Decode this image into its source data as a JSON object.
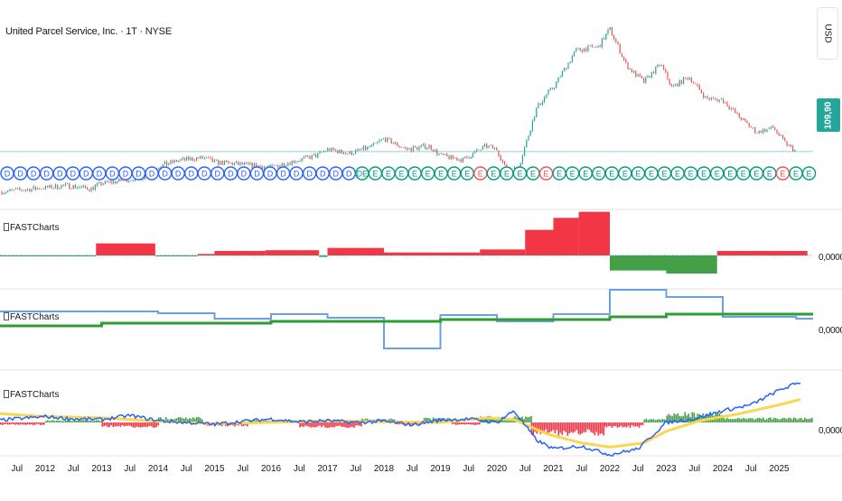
{
  "header": {
    "symbol_title": "United Parcel Service, Inc. · 1T · NYSE",
    "currency": "USD",
    "last_price": "109,90"
  },
  "panes": [
    {
      "indicator_name": "FASTCharts",
      "zero_value": "0,0000"
    },
    {
      "indicator_name": "FASTCharts",
      "zero_value": "0,0000"
    },
    {
      "indicator_name": "FASTCharts",
      "zero_value": "0,0000"
    }
  ],
  "colors": {
    "up": "#26a69a",
    "down": "#ef5350",
    "red_fill": "#f23645",
    "green_fill": "#43a047",
    "blue_line": "#2962ff",
    "light_blue_line": "#6ca0e6",
    "dark_green_line": "#2e9d34",
    "yellow_line": "#f9d74e",
    "event_blue": "#2962ff",
    "event_green": "#089981"
  },
  "events": {
    "markers": [
      "D",
      "D",
      "D",
      "D",
      "D",
      "D",
      "D",
      "D",
      "D",
      "D",
      "D",
      "D",
      "D",
      "D",
      "D",
      "D",
      "D",
      "D",
      "D",
      "D",
      "D",
      "D",
      "D",
      "D",
      "D",
      "D",
      "D",
      "DE",
      "E",
      "E",
      "E",
      "E",
      "E",
      "E",
      "E",
      "E",
      "E",
      "E",
      "E",
      "E",
      "E",
      "E",
      "E",
      "E",
      "E",
      "E",
      "E",
      "E",
      "E",
      "E",
      "E",
      "E",
      "E",
      "E",
      "E",
      "E",
      "E",
      "E",
      "E",
      "E",
      "E",
      "E"
    ],
    "red_indices": [
      36,
      41,
      59
    ]
  },
  "chart_data": {
    "type": "line",
    "title": "United Parcel Service, Inc. · 1T · NYSE",
    "xlabel": "",
    "ylabel": "USD",
    "x_ticks": [
      "Jul",
      "2012",
      "Jul",
      "2013",
      "Jul",
      "2014",
      "Jul",
      "2015",
      "Jul",
      "2016",
      "Jul",
      "2017",
      "Jul",
      "2018",
      "Jul",
      "2019",
      "Jul",
      "2020",
      "Jul",
      "2021",
      "Jul",
      "2022",
      "Jul",
      "2023",
      "Jul",
      "2024",
      "Jul",
      "2025"
    ],
    "x_range": [
      2011.2,
      2025.6
    ],
    "price": {
      "last": 109.9,
      "ylim": [
        70,
        235
      ],
      "series": [
        [
          2011.2,
          72
        ],
        [
          2011.6,
          74
        ],
        [
          2012.0,
          76
        ],
        [
          2012.4,
          78
        ],
        [
          2012.8,
          75
        ],
        [
          2013.0,
          80
        ],
        [
          2013.4,
          83
        ],
        [
          2013.8,
          87
        ],
        [
          2014.0,
          96
        ],
        [
          2014.4,
          102
        ],
        [
          2014.8,
          104
        ],
        [
          2015.0,
          100
        ],
        [
          2015.4,
          98
        ],
        [
          2015.8,
          96
        ],
        [
          2016.0,
          95
        ],
        [
          2016.4,
          101
        ],
        [
          2016.8,
          106
        ],
        [
          2017.0,
          112
        ],
        [
          2017.4,
          108
        ],
        [
          2017.8,
          115
        ],
        [
          2018.0,
          122
        ],
        [
          2018.4,
          112
        ],
        [
          2018.8,
          115
        ],
        [
          2019.0,
          106
        ],
        [
          2019.4,
          102
        ],
        [
          2019.8,
          115
        ],
        [
          2020.0,
          112
        ],
        [
          2020.2,
          88
        ],
        [
          2020.4,
          98
        ],
        [
          2020.7,
          150
        ],
        [
          2020.9,
          165
        ],
        [
          2021.0,
          170
        ],
        [
          2021.4,
          205
        ],
        [
          2021.8,
          208
        ],
        [
          2022.0,
          225
        ],
        [
          2022.3,
          190
        ],
        [
          2022.6,
          175
        ],
        [
          2022.9,
          192
        ],
        [
          2023.1,
          170
        ],
        [
          2023.4,
          180
        ],
        [
          2023.7,
          160
        ],
        [
          2024.0,
          158
        ],
        [
          2024.3,
          142
        ],
        [
          2024.6,
          128
        ],
        [
          2024.9,
          132
        ],
        [
          2025.1,
          118
        ],
        [
          2025.3,
          109.9
        ]
      ]
    },
    "pane1_histogram": {
      "segments": [
        {
          "from": 2011.2,
          "to": 2012.9,
          "value": -0.5
        },
        {
          "from": 2012.9,
          "to": 2013.95,
          "value": 8
        },
        {
          "from": 2013.95,
          "to": 2014.7,
          "value": -0.4
        },
        {
          "from": 2014.7,
          "to": 2015.0,
          "value": 1
        },
        {
          "from": 2015.0,
          "to": 2015.9,
          "value": 3
        },
        {
          "from": 2015.9,
          "to": 2016.85,
          "value": 3.5
        },
        {
          "from": 2016.85,
          "to": 2017.0,
          "value": -1
        },
        {
          "from": 2017.0,
          "to": 2018.0,
          "value": 5
        },
        {
          "from": 2018.0,
          "to": 2019.7,
          "value": 2
        },
        {
          "from": 2019.7,
          "to": 2020.5,
          "value": 4
        },
        {
          "from": 2020.5,
          "to": 2021.0,
          "value": 17
        },
        {
          "from": 2021.0,
          "to": 2021.45,
          "value": 25
        },
        {
          "from": 2021.45,
          "to": 2022.0,
          "value": 29
        },
        {
          "from": 2022.0,
          "to": 2023.0,
          "value": -10
        },
        {
          "from": 2023.0,
          "to": 2023.9,
          "value": -12
        },
        {
          "from": 2023.9,
          "to": 2025.5,
          "value": 3
        }
      ],
      "ylim": [
        -15,
        30
      ]
    },
    "pane2_steps": {
      "light_blue": [
        [
          2011.2,
          2012.0,
          20
        ],
        [
          2012.0,
          2014.0,
          20
        ],
        [
          2014.0,
          2015.0,
          18
        ],
        [
          2015.0,
          2016.0,
          12
        ],
        [
          2016.0,
          2017.0,
          17
        ],
        [
          2017.0,
          2018.0,
          13
        ],
        [
          2018.0,
          2019.0,
          -21
        ],
        [
          2019.0,
          2020.0,
          16
        ],
        [
          2020.0,
          2021.0,
          9
        ],
        [
          2021.0,
          2022.0,
          17
        ],
        [
          2022.0,
          2023.0,
          44
        ],
        [
          2023.0,
          2024.0,
          36
        ],
        [
          2024.0,
          2025.3,
          14
        ],
        [
          2025.3,
          2025.6,
          12
        ]
      ],
      "dark_green": [
        [
          2011.2,
          2013.0,
          4
        ],
        [
          2013.0,
          2016.0,
          7
        ],
        [
          2016.0,
          2019.0,
          9
        ],
        [
          2019.0,
          2022.0,
          11
        ],
        [
          2022.0,
          2023.0,
          14
        ],
        [
          2023.0,
          2025.6,
          17
        ]
      ],
      "ylim": [
        -25,
        50
      ]
    },
    "pane3_lines": {
      "blue": [
        [
          2011.2,
          0.4
        ],
        [
          2012.0,
          1.0
        ],
        [
          2012.5,
          0.6
        ],
        [
          2013.0,
          0.5
        ],
        [
          2013.5,
          1.2
        ],
        [
          2014.0,
          0.3
        ],
        [
          2014.5,
          0.0
        ],
        [
          2015.0,
          -0.3
        ],
        [
          2015.5,
          0.2
        ],
        [
          2016.0,
          0.6
        ],
        [
          2016.5,
          0.1
        ],
        [
          2017.0,
          0.3
        ],
        [
          2017.5,
          0.0
        ],
        [
          2018.0,
          0.2
        ],
        [
          2018.5,
          -0.4
        ],
        [
          2019.0,
          0.4
        ],
        [
          2019.5,
          0.6
        ],
        [
          2020.0,
          0.0
        ],
        [
          2020.3,
          2.0
        ],
        [
          2020.7,
          -3.0
        ],
        [
          2021.0,
          -4.5
        ],
        [
          2021.5,
          -4.0
        ],
        [
          2022.0,
          -5.5
        ],
        [
          2022.5,
          -4.5
        ],
        [
          2023.0,
          0.0
        ],
        [
          2023.5,
          0.6
        ],
        [
          2024.0,
          2.0
        ],
        [
          2024.5,
          3.0
        ],
        [
          2025.0,
          5.5
        ],
        [
          2025.4,
          7.0
        ]
      ],
      "yellow": [
        [
          2011.2,
          1.5
        ],
        [
          2012.0,
          1.0
        ],
        [
          2013.0,
          0.8
        ],
        [
          2014.0,
          0.2
        ],
        [
          2015.0,
          -0.2
        ],
        [
          2016.0,
          0.0
        ],
        [
          2017.0,
          0.3
        ],
        [
          2018.0,
          0.1
        ],
        [
          2019.0,
          0.0
        ],
        [
          2019.8,
          0.8
        ],
        [
          2020.3,
          0.5
        ],
        [
          2020.9,
          -2.0
        ],
        [
          2021.5,
          -3.5
        ],
        [
          2022.0,
          -4.2
        ],
        [
          2022.6,
          -3.5
        ],
        [
          2023.0,
          -1.5
        ],
        [
          2023.6,
          0.3
        ],
        [
          2024.3,
          1.5
        ],
        [
          2025.0,
          3.0
        ],
        [
          2025.4,
          4.0
        ]
      ],
      "histogram": [
        {
          "from": 2011.2,
          "to": 2012.0,
          "value": -1
        },
        {
          "from": 2012.0,
          "to": 2013.0,
          "value": 1
        },
        {
          "from": 2013.0,
          "to": 2014.0,
          "value": -2
        },
        {
          "from": 2014.0,
          "to": 2014.8,
          "value": 2
        },
        {
          "from": 2014.8,
          "to": 2015.6,
          "value": -1.5
        },
        {
          "from": 2015.6,
          "to": 2016.5,
          "value": 1
        },
        {
          "from": 2016.5,
          "to": 2017.6,
          "value": -2
        },
        {
          "from": 2017.6,
          "to": 2018.2,
          "value": 1.5
        },
        {
          "from": 2018.2,
          "to": 2018.7,
          "value": -1
        },
        {
          "from": 2018.7,
          "to": 2019.2,
          "value": 2
        },
        {
          "from": 2019.2,
          "to": 2019.7,
          "value": -1
        },
        {
          "from": 2019.7,
          "to": 2020.6,
          "value": 2.5
        },
        {
          "from": 2020.6,
          "to": 2021.9,
          "value": -5
        },
        {
          "from": 2021.9,
          "to": 2022.6,
          "value": -2
        },
        {
          "from": 2022.6,
          "to": 2023.0,
          "value": 1.5
        },
        {
          "from": 2023.0,
          "to": 2024.0,
          "value": 4
        },
        {
          "from": 2024.0,
          "to": 2025.6,
          "value": 2
        }
      ],
      "ylim": [
        -7,
        9
      ]
    }
  }
}
